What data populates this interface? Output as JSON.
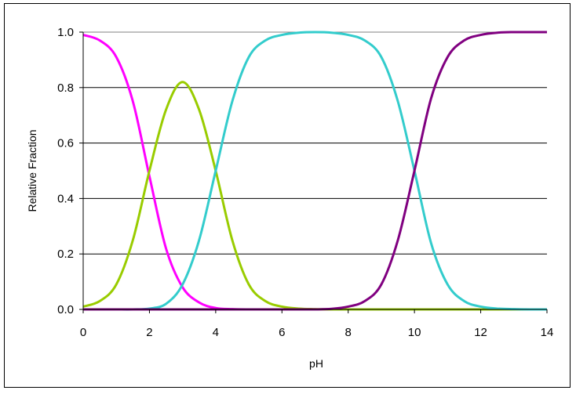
{
  "chart_data": {
    "type": "line",
    "title": "",
    "xlabel": "pH",
    "ylabel": "Relative Fraction",
    "xlim": [
      0,
      14
    ],
    "ylim": [
      0,
      1
    ],
    "xticks": [
      0,
      2,
      4,
      6,
      8,
      10,
      12,
      14
    ],
    "xtick_labels": [
      "0",
      "2",
      "4",
      "6",
      "8",
      "10",
      "12",
      "14"
    ],
    "yticks": [
      0,
      0.2,
      0.4,
      0.6,
      0.8,
      1.0
    ],
    "ytick_labels": [
      "0.0",
      "0.2",
      "0.4",
      "0.6",
      "0.8",
      "1.0"
    ],
    "grid": "horizontal",
    "legend": "none",
    "x": [
      0,
      0.5,
      1,
      1.5,
      2,
      2.5,
      3,
      3.5,
      4,
      4.5,
      5,
      5.5,
      6,
      6.5,
      7,
      7.5,
      8,
      8.5,
      9,
      9.5,
      10,
      10.5,
      11,
      11.5,
      12,
      12.5,
      13,
      13.5,
      14
    ],
    "series": [
      {
        "color": "#ff00ff",
        "values": [
          0.99,
          0.97,
          0.91,
          0.75,
          0.48,
          0.22,
          0.08,
          0.025,
          0.005,
          0.001,
          0,
          0,
          0,
          0,
          0,
          0,
          0,
          0,
          0,
          0,
          0,
          0,
          0,
          0,
          0,
          0,
          0,
          0,
          0
        ]
      },
      {
        "color": "#99cc00",
        "values": [
          0.01,
          0.03,
          0.09,
          0.25,
          0.5,
          0.72,
          0.82,
          0.72,
          0.5,
          0.25,
          0.09,
          0.03,
          0.01,
          0.003,
          0.001,
          0,
          0,
          0,
          0,
          0,
          0,
          0,
          0,
          0,
          0,
          0,
          0,
          0,
          0
        ]
      },
      {
        "color": "#33cccc",
        "values": [
          0,
          0,
          0,
          0,
          0.003,
          0.02,
          0.09,
          0.25,
          0.5,
          0.75,
          0.91,
          0.97,
          0.99,
          0.998,
          1.0,
          0.998,
          0.99,
          0.97,
          0.91,
          0.75,
          0.5,
          0.24,
          0.09,
          0.03,
          0.01,
          0.003,
          0.001,
          0,
          0
        ]
      },
      {
        "color": "#800080",
        "values": [
          0,
          0,
          0,
          0,
          0,
          0,
          0,
          0,
          0,
          0,
          0,
          0,
          0,
          0,
          0,
          0.002,
          0.01,
          0.03,
          0.09,
          0.25,
          0.5,
          0.76,
          0.91,
          0.97,
          0.99,
          0.998,
          1.0,
          1.0,
          1.0
        ]
      }
    ]
  }
}
